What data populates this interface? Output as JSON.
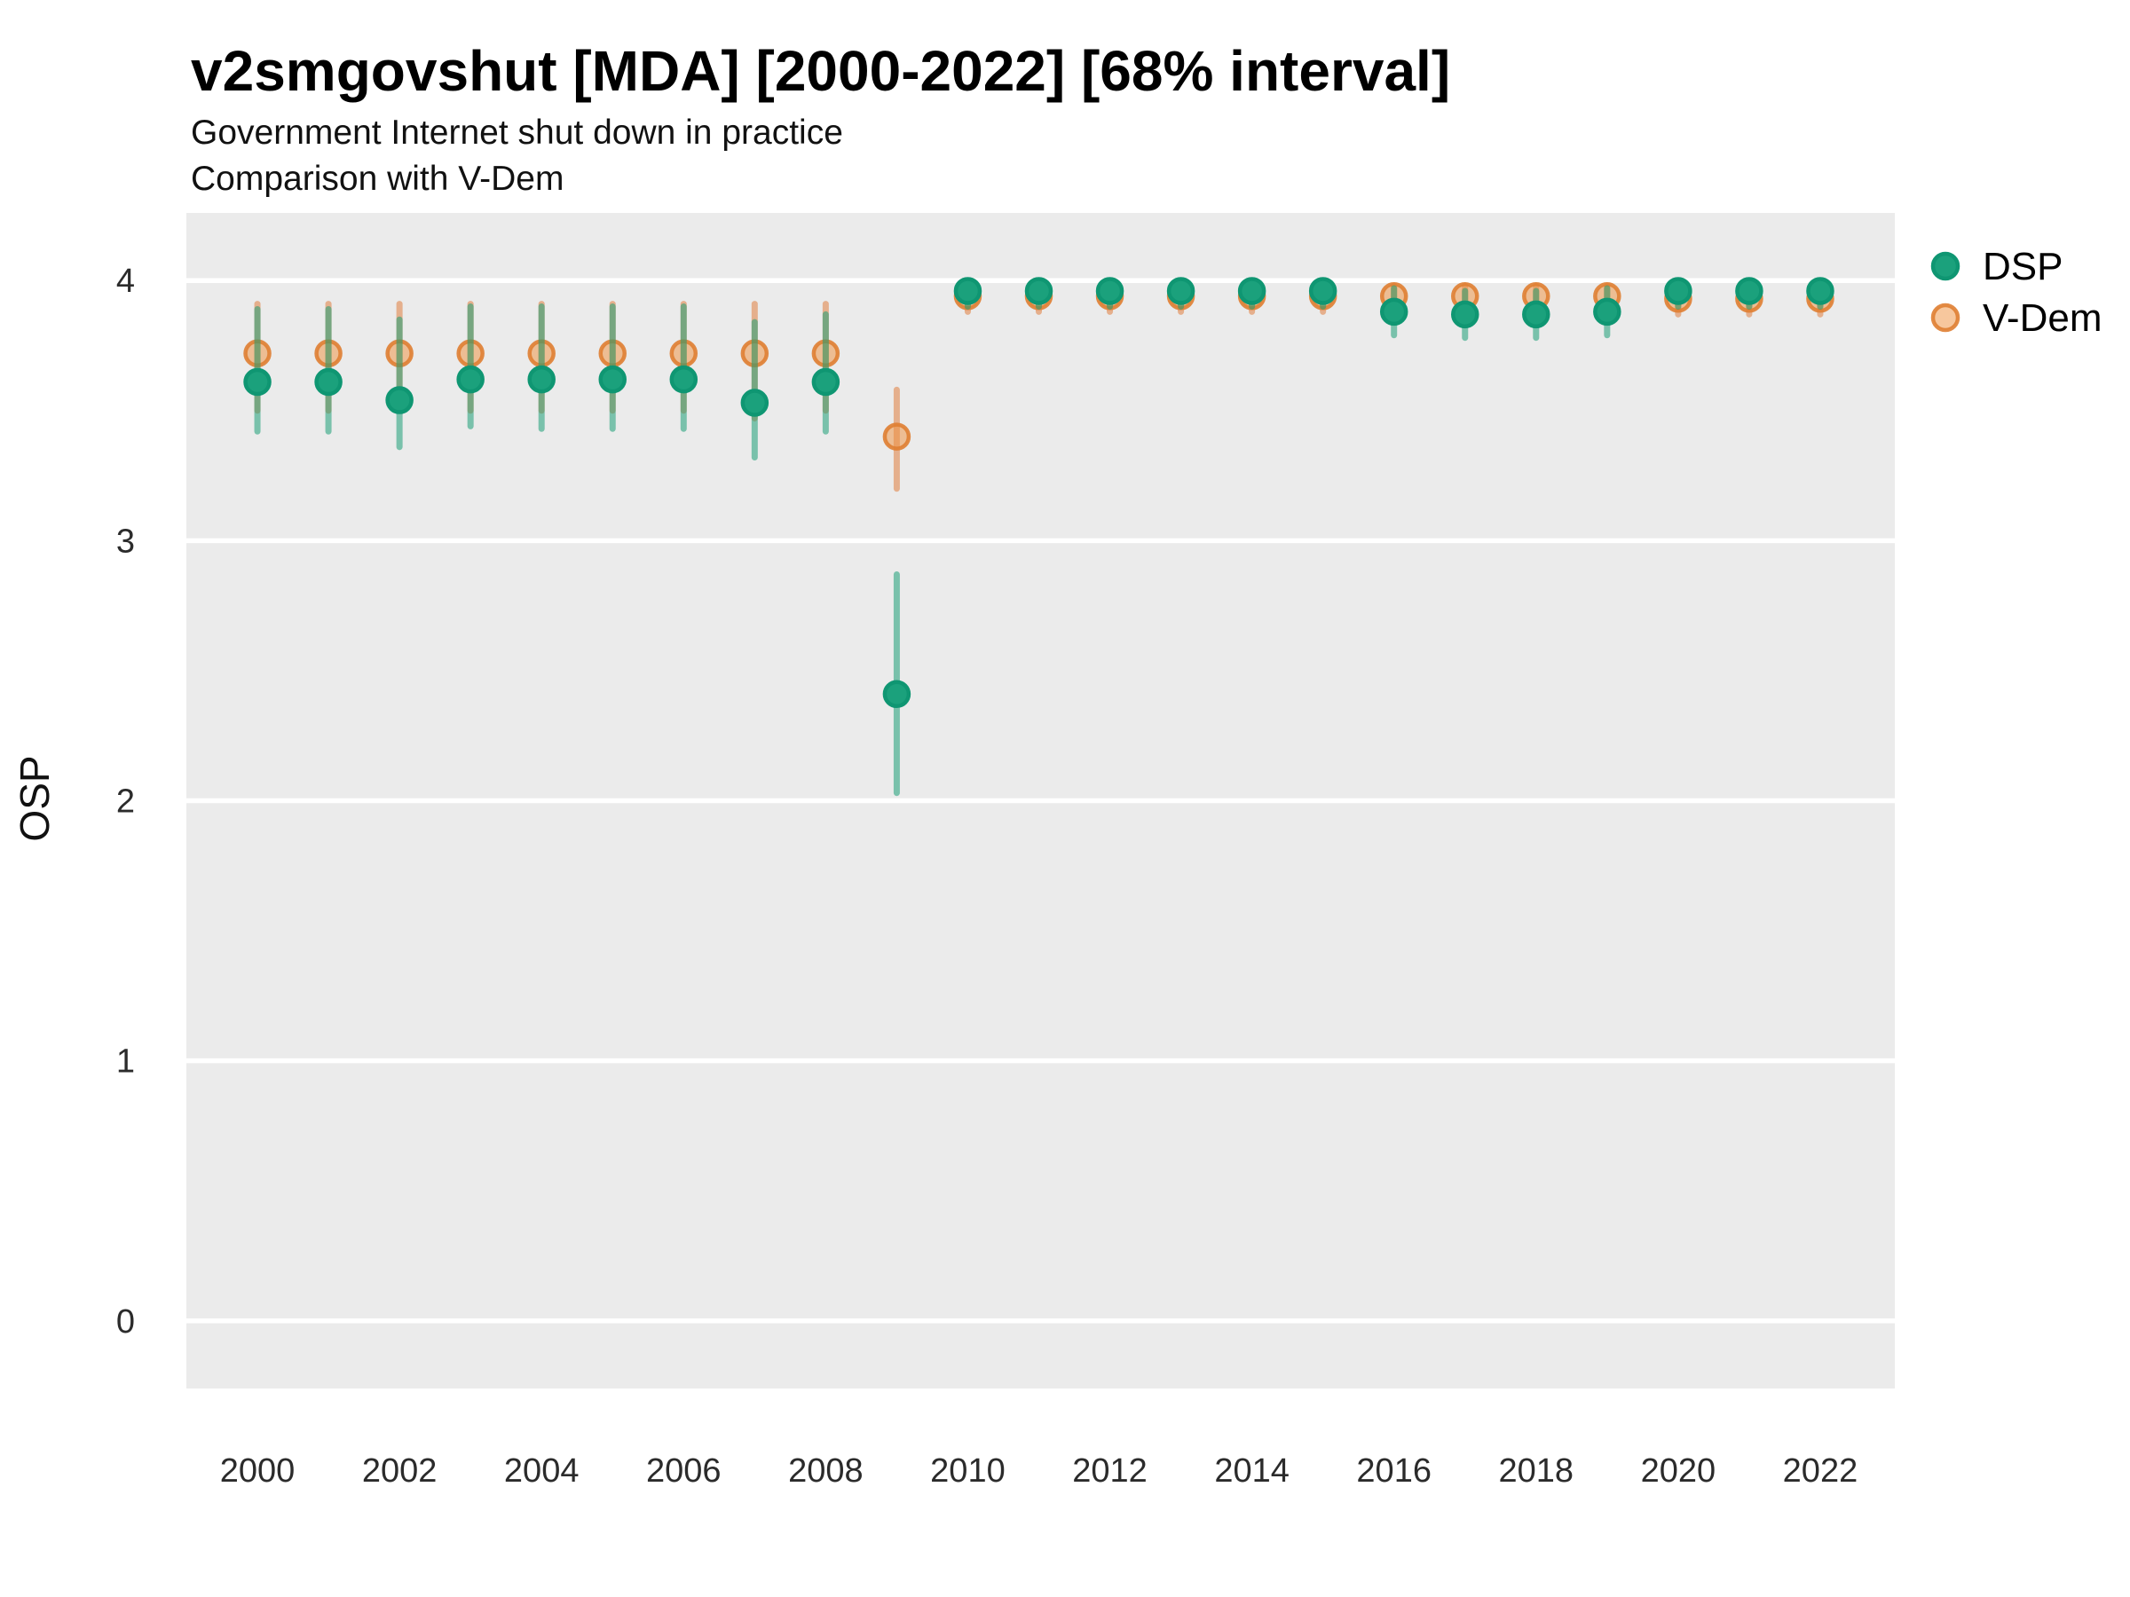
{
  "header": {
    "title": "v2smgovshut [MDA] [2000-2022] [68% interval]",
    "subtitle1": "Government Internet shut down in practice",
    "subtitle2": "Comparison with V-Dem"
  },
  "colors": {
    "figure_bg": "#FFFFFF",
    "panel_bg": "#EBEBEB",
    "gridline": "#FFFFFF",
    "text": "#000000",
    "dsp_fill": "#1BA17C",
    "dsp_stroke": "#0F9672",
    "dsp_interval": "rgba(27,158,119,0.55)",
    "vdem_fill": "rgba(240,144,60,0.5)",
    "vdem_stroke": "rgba(223,126,50,0.9)",
    "vdem_interval": "rgba(224,126,62,0.55)"
  },
  "chart_data": {
    "type": "scatter",
    "subtype": "pointrange",
    "title": "v2smgovshut [MDA] [2000-2022] [68% interval]",
    "subtitle": "Government Internet shut down in practice / Comparison with V-Dem",
    "xlabel": "",
    "ylabel": "OSP",
    "interval_level": "68%",
    "grid": "horizontal-white-on-gray",
    "legend_position": "right-top",
    "xlim": [
      1999,
      2023.05
    ],
    "ylim": [
      -0.26,
      4.26
    ],
    "xticks": [
      2000,
      2002,
      2004,
      2006,
      2008,
      2010,
      2012,
      2014,
      2016,
      2018,
      2020,
      2022
    ],
    "yticks": [
      0,
      1,
      2,
      3,
      4
    ],
    "x": [
      2000,
      2001,
      2002,
      2003,
      2004,
      2005,
      2006,
      2007,
      2008,
      2009,
      2010,
      2011,
      2012,
      2013,
      2014,
      2015,
      2016,
      2017,
      2018,
      2019,
      2020,
      2021,
      2022
    ],
    "series": [
      {
        "name": "V-Dem",
        "fill": "rgba(240,144,60,0.5)",
        "stroke": "rgba(223,126,50,0.9)",
        "interval_color": "rgba(224,126,62,0.55)",
        "values": [
          3.72,
          3.72,
          3.72,
          3.72,
          3.72,
          3.72,
          3.72,
          3.72,
          3.72,
          3.4,
          3.94,
          3.94,
          3.94,
          3.94,
          3.94,
          3.94,
          3.94,
          3.94,
          3.94,
          3.94,
          3.93,
          3.93,
          3.93
        ],
        "lo": [
          3.5,
          3.5,
          3.5,
          3.5,
          3.5,
          3.5,
          3.5,
          3.47,
          3.5,
          3.2,
          3.88,
          3.88,
          3.88,
          3.88,
          3.88,
          3.88,
          3.88,
          3.88,
          3.88,
          3.88,
          3.87,
          3.87,
          3.87
        ],
        "hi": [
          3.91,
          3.91,
          3.91,
          3.91,
          3.91,
          3.91,
          3.91,
          3.91,
          3.91,
          3.58,
          3.98,
          3.98,
          3.98,
          3.98,
          3.98,
          3.98,
          3.98,
          3.98,
          3.98,
          3.98,
          3.97,
          3.97,
          3.97
        ]
      },
      {
        "name": "DSP",
        "fill": "#1BA17C",
        "stroke": "#0F9672",
        "interval_color": "rgba(27,158,119,0.55)",
        "values": [
          3.61,
          3.61,
          3.54,
          3.62,
          3.62,
          3.62,
          3.62,
          3.53,
          3.61,
          2.41,
          3.96,
          3.96,
          3.96,
          3.96,
          3.96,
          3.96,
          3.88,
          3.87,
          3.87,
          3.88,
          3.96,
          3.96,
          3.96
        ],
        "lo": [
          3.42,
          3.42,
          3.36,
          3.44,
          3.43,
          3.43,
          3.43,
          3.32,
          3.42,
          2.03,
          3.9,
          3.9,
          3.9,
          3.9,
          3.9,
          3.9,
          3.79,
          3.78,
          3.78,
          3.79,
          3.9,
          3.9,
          3.9
        ],
        "hi": [
          3.89,
          3.89,
          3.85,
          3.9,
          3.9,
          3.9,
          3.9,
          3.84,
          3.87,
          2.87,
          3.99,
          3.99,
          3.99,
          3.99,
          3.99,
          3.99,
          3.97,
          3.96,
          3.96,
          3.97,
          3.99,
          3.99,
          3.99
        ]
      }
    ],
    "legend_order": [
      "DSP",
      "V-Dem"
    ]
  }
}
